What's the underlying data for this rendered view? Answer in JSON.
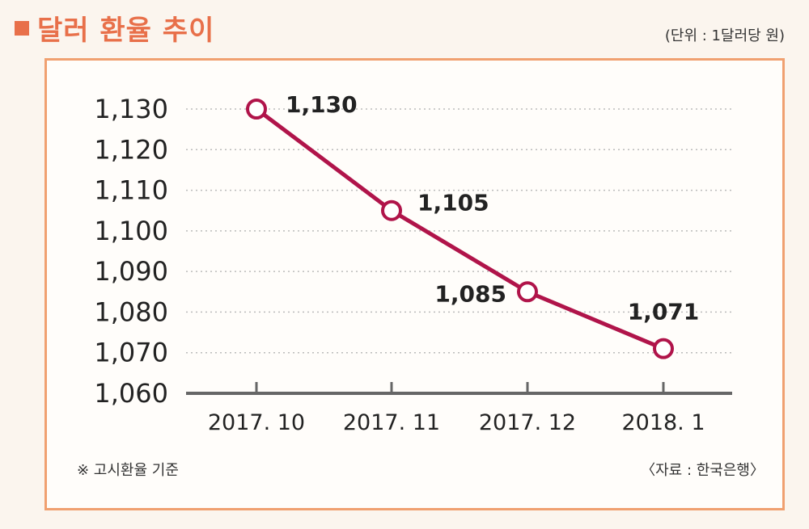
{
  "header": {
    "title": "달러 환율 추이",
    "unit": "(단위 : 1달러당 원)"
  },
  "footer": {
    "note": "※ 고시환율 기준",
    "source": "〈자료 : 한국은행〉"
  },
  "colors": {
    "accent": "#e8704a",
    "line": "#b0144a",
    "panel_border": "#f0a070"
  },
  "chart_data": {
    "type": "line",
    "title": "달러 환율 추이",
    "xlabel": "",
    "ylabel": "",
    "categories": [
      "2017. 10",
      "2017. 11",
      "2017. 12",
      "2018. 1"
    ],
    "series": [
      {
        "values": [
          1130,
          1105,
          1085,
          1071
        ],
        "labels": [
          "1,130",
          "1,105",
          "1,085",
          "1,071"
        ]
      }
    ],
    "ylim": [
      1060,
      1130
    ],
    "yticks": [
      1060,
      1070,
      1080,
      1090,
      1100,
      1110,
      1120,
      1130
    ],
    "ytick_labels": [
      "1,060",
      "1,070",
      "1,080",
      "1,090",
      "1,100",
      "1,110",
      "1,120",
      "1,130"
    ],
    "grid": true
  }
}
